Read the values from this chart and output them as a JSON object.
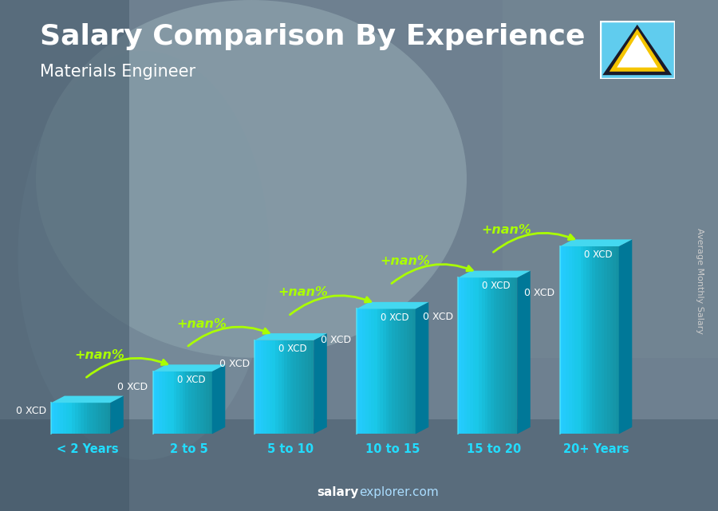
{
  "title": "Salary Comparison By Experience",
  "subtitle": "Materials Engineer",
  "ylabel": "Average Monthly Salary",
  "watermark": "salaryexplorer.com",
  "watermark_bold": "salary",
  "watermark_regular": "explorer.com",
  "categories": [
    "< 2 Years",
    "2 to 5",
    "5 to 10",
    "10 to 15",
    "15 to 20",
    "20+ Years"
  ],
  "bar_heights": [
    1,
    2,
    3,
    4,
    5,
    6
  ],
  "bar_values_text": [
    "0 XCD",
    "0 XCD",
    "0 XCD",
    "0 XCD",
    "0 XCD",
    "0 XCD"
  ],
  "increase_labels": [
    "+nan%",
    "+nan%",
    "+nan%",
    "+nan%",
    "+nan%"
  ],
  "title_fontsize": 26,
  "subtitle_fontsize": 15,
  "bar_front_color": "#1ac8e8",
  "bar_side_color": "#0088aa",
  "bar_top_color": "#55ddff",
  "bar_highlight_color": "#80eeff",
  "arrow_color": "#aaff00",
  "increase_color": "#aaff00",
  "cat_color": "#22ddff",
  "value_color": "#ffffff",
  "title_color": "#ffffff",
  "subtitle_color": "#ffffff",
  "bg_color": "#6a7d8a",
  "bg_color2": "#4a6070",
  "flag_bg": "#55ccff",
  "ylabel_color": "#cccccc",
  "watermark_color": "#aaddff",
  "watermark_bold_color": "#ffffff"
}
